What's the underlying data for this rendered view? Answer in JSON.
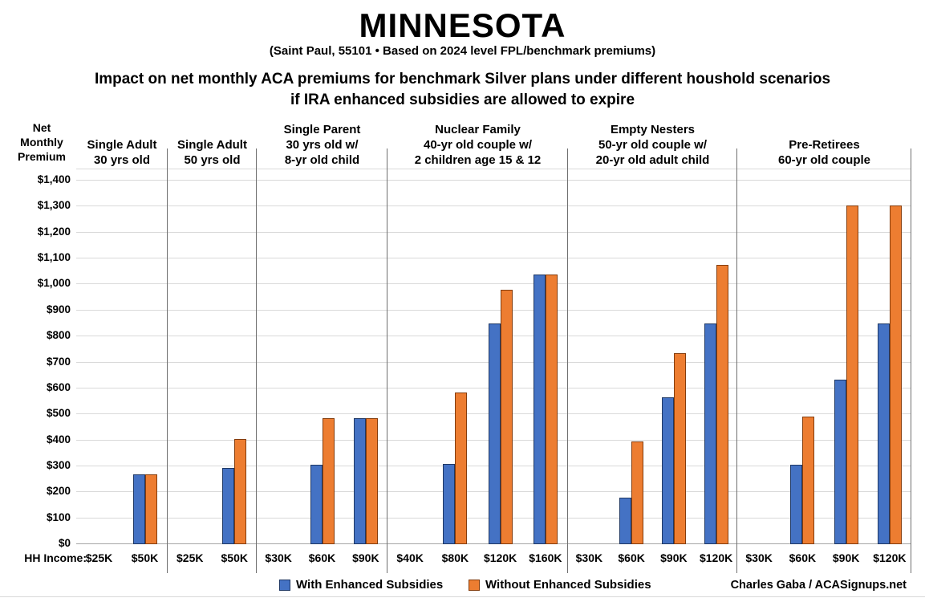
{
  "header": {
    "title": "MINNESOTA",
    "subtitle": "(Saint Paul, 55101 • Based on 2024 level FPL/benchmark premiums)",
    "desc1": "Impact on net monthly ACA premiums for benchmark Silver plans under different houshold scenarios",
    "desc2": "if IRA enhanced subsidies are allowed to expire"
  },
  "axis": {
    "net1": "Net",
    "net2": "Monthly",
    "net3": "Premium",
    "hh_income_label": "HH Income:"
  },
  "legend": {
    "with_label": "With Enhanced Subsidies",
    "without_label": "Without Enhanced Subsidies",
    "credit": "Charles Gaba / ACASignups.net"
  },
  "colors": {
    "with_fill": "#4472C4",
    "with_border": "#1F3864",
    "without_fill": "#ED7D31",
    "without_border": "#843C0C",
    "gridline": "#d9d9d9",
    "separator": "#6f6f6f"
  },
  "chart_data": {
    "type": "bar",
    "title": "Impact on net monthly ACA premiums for benchmark Silver plans under different houshold scenarios if IRA enhanced subsidies are allowed to expire",
    "ylabel": "Net Monthly Premium",
    "xlabel": "HH Income",
    "ylim": [
      0,
      1400
    ],
    "ytick_step": 100,
    "grid": true,
    "legend_position": "bottom",
    "series_names": [
      "With Enhanced Subsidies",
      "Without Enhanced Subsidies"
    ],
    "groups": [
      {
        "label_lines": [
          "Single Adult",
          "30 yrs old"
        ],
        "incomes": [
          "$25K",
          "$50K"
        ],
        "with_enhanced": [
          0,
          270
        ],
        "without_enhanced": [
          0,
          270
        ]
      },
      {
        "label_lines": [
          "Single Adult",
          "50 yrs old"
        ],
        "incomes": [
          "$25K",
          "$50K"
        ],
        "with_enhanced": [
          0,
          295
        ],
        "without_enhanced": [
          0,
          405
        ]
      },
      {
        "label_lines": [
          "Single Parent",
          "30 yrs old w/",
          "8-yr old child"
        ],
        "incomes": [
          "$30K",
          "$60K",
          "$90K"
        ],
        "with_enhanced": [
          0,
          305,
          485
        ],
        "without_enhanced": [
          0,
          485,
          485
        ]
      },
      {
        "label_lines": [
          "Nuclear Family",
          "40-yr old couple w/",
          "2 children age 15 & 12"
        ],
        "incomes": [
          "$40K",
          "$80K",
          "$120K",
          "$160K"
        ],
        "with_enhanced": [
          0,
          310,
          850,
          1040
        ],
        "without_enhanced": [
          0,
          585,
          980,
          1040
        ]
      },
      {
        "label_lines": [
          "Empty Nesters",
          "50-yr old couple w/",
          "20-yr old adult child"
        ],
        "incomes": [
          "$30K",
          "$60K",
          "$90K",
          "$120K"
        ],
        "with_enhanced": [
          0,
          180,
          565,
          850
        ],
        "without_enhanced": [
          0,
          395,
          735,
          1075
        ]
      },
      {
        "label_lines": [
          "Pre-Retirees",
          "60-yr old couple"
        ],
        "incomes": [
          "$30K",
          "$60K",
          "$90K",
          "$120K"
        ],
        "with_enhanced": [
          0,
          305,
          635,
          850
        ],
        "without_enhanced": [
          0,
          490,
          1305,
          1305
        ]
      }
    ]
  }
}
